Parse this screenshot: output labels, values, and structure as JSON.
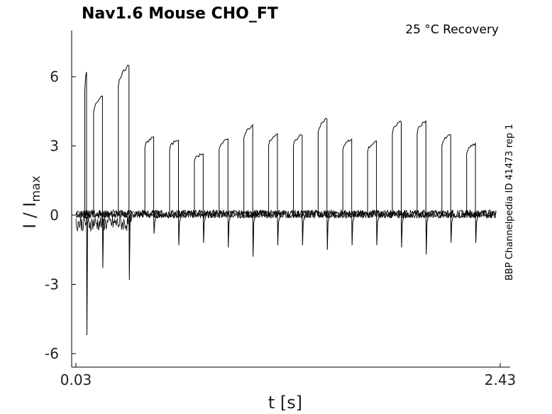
{
  "chart_data": {
    "type": "line",
    "title": "Nav1.6  Mouse  CHO_FT",
    "annotation": "25 °C  Recovery",
    "side_label": "BBP Channelpedia ID 41473 rep 1",
    "xlabel": "t [s]",
    "ylabel_main": "I / I",
    "ylabel_sub": "max",
    "xlim": [
      0.03,
      2.43
    ],
    "ylim": [
      -6.5,
      8
    ],
    "x_ticks": [
      0.03,
      2.43
    ],
    "x_tick_labels": [
      "0.03",
      "2.43"
    ],
    "y_ticks": [
      6,
      3,
      0,
      -3,
      -6
    ],
    "y_tick_labels": [
      "6",
      "3",
      "0",
      "-3",
      "-6"
    ],
    "grid": false,
    "line_color": "#000000",
    "pulses": [
      {
        "t_start": 0.08,
        "t_end": 0.09,
        "peak": 6.2,
        "transient": -5.2
      },
      {
        "t_start": 0.13,
        "t_end": 0.18,
        "peak": 5.2,
        "transient": -2.3
      },
      {
        "t_start": 0.27,
        "t_end": 0.33,
        "peak": 6.5,
        "transient": -2.8
      },
      {
        "t_start": 0.42,
        "t_end": 0.47,
        "peak": 3.4,
        "transient": -0.8
      },
      {
        "t_start": 0.56,
        "t_end": 0.61,
        "peak": 3.3,
        "transient": -1.3
      },
      {
        "t_start": 0.7,
        "t_end": 0.75,
        "peak": 2.7,
        "transient": -1.2
      },
      {
        "t_start": 0.84,
        "t_end": 0.89,
        "peak": 3.3,
        "transient": -1.4
      },
      {
        "t_start": 0.98,
        "t_end": 1.03,
        "peak": 3.9,
        "transient": -1.8
      },
      {
        "t_start": 1.12,
        "t_end": 1.17,
        "peak": 3.5,
        "transient": -1.3
      },
      {
        "t_start": 1.26,
        "t_end": 1.31,
        "peak": 3.5,
        "transient": -1.3
      },
      {
        "t_start": 1.4,
        "t_end": 1.45,
        "peak": 4.2,
        "transient": -1.5
      },
      {
        "t_start": 1.54,
        "t_end": 1.59,
        "peak": 3.3,
        "transient": -1.3
      },
      {
        "t_start": 1.68,
        "t_end": 1.73,
        "peak": 3.2,
        "transient": -1.3
      },
      {
        "t_start": 1.82,
        "t_end": 1.87,
        "peak": 4.1,
        "transient": -1.4
      },
      {
        "t_start": 1.96,
        "t_end": 2.01,
        "peak": 4.1,
        "transient": -1.7
      },
      {
        "t_start": 2.1,
        "t_end": 2.15,
        "peak": 3.5,
        "transient": -1.2
      },
      {
        "t_start": 2.24,
        "t_end": 2.29,
        "peak": 3.1,
        "transient": -1.2
      }
    ]
  }
}
